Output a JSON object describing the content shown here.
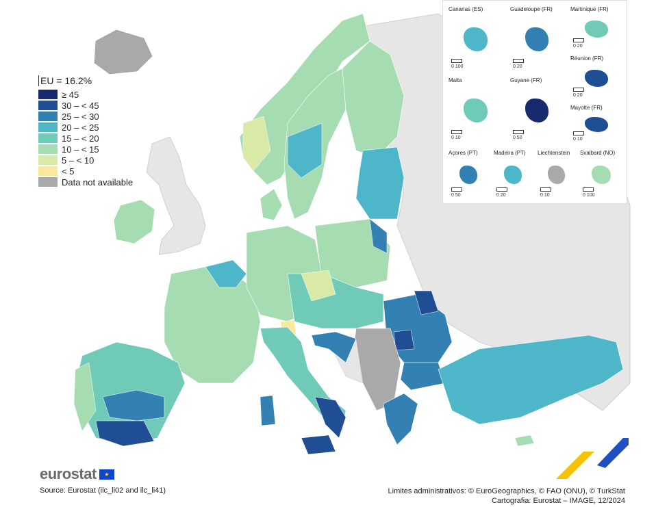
{
  "legend": {
    "title": "EU = 16.2%",
    "items": [
      {
        "label": "≥ 45",
        "color": "#172a6e"
      },
      {
        "label": "30 – < 45",
        "color": "#1f4e94"
      },
      {
        "label": "25 – < 30",
        "color": "#3380b3"
      },
      {
        "label": "20 – < 25",
        "color": "#4db6c8"
      },
      {
        "label": "15 – < 20",
        "color": "#6fcbb8"
      },
      {
        "label": "10 – < 15",
        "color": "#a6dcb2"
      },
      {
        "label": "5 – < 10",
        "color": "#d9e9a8"
      },
      {
        "label": "< 5",
        "color": "#fce89a"
      },
      {
        "label": "Data not available",
        "color": "#a9a9a9"
      }
    ]
  },
  "insets": [
    {
      "label": "Canarias (ES)",
      "scale": "0   100"
    },
    {
      "label": "Guadeloupe (FR)",
      "scale": "0   20"
    },
    {
      "label": "Martinique (FR)",
      "scale": "0   20"
    },
    {
      "label": "Réunion (FR)",
      "scale": "0   20"
    },
    {
      "label": "Malta",
      "scale": "0   10"
    },
    {
      "label": "Guyane (FR)",
      "scale": "0  50"
    },
    {
      "label": "Mayotte (FR)",
      "scale": "0  10"
    },
    {
      "label": "Açores (PT)",
      "scale": "0   50"
    },
    {
      "label": "Madeira (PT)",
      "scale": "0   20"
    },
    {
      "label": "Liechtenstein",
      "scale": "0   10"
    },
    {
      "label": "Svalbard (NO)",
      "scale": "0 100"
    }
  ],
  "logo": {
    "text": "eurostat"
  },
  "source": "Source: Eurostat (ilc_li02 and ilc_li41)",
  "credits": {
    "line1": "Limites administrativos: © EuroGeographics, © FAO (ONU), © TurkStat",
    "line2": "Cartografia: Eurostat – IMAGE, 12/2024"
  }
}
